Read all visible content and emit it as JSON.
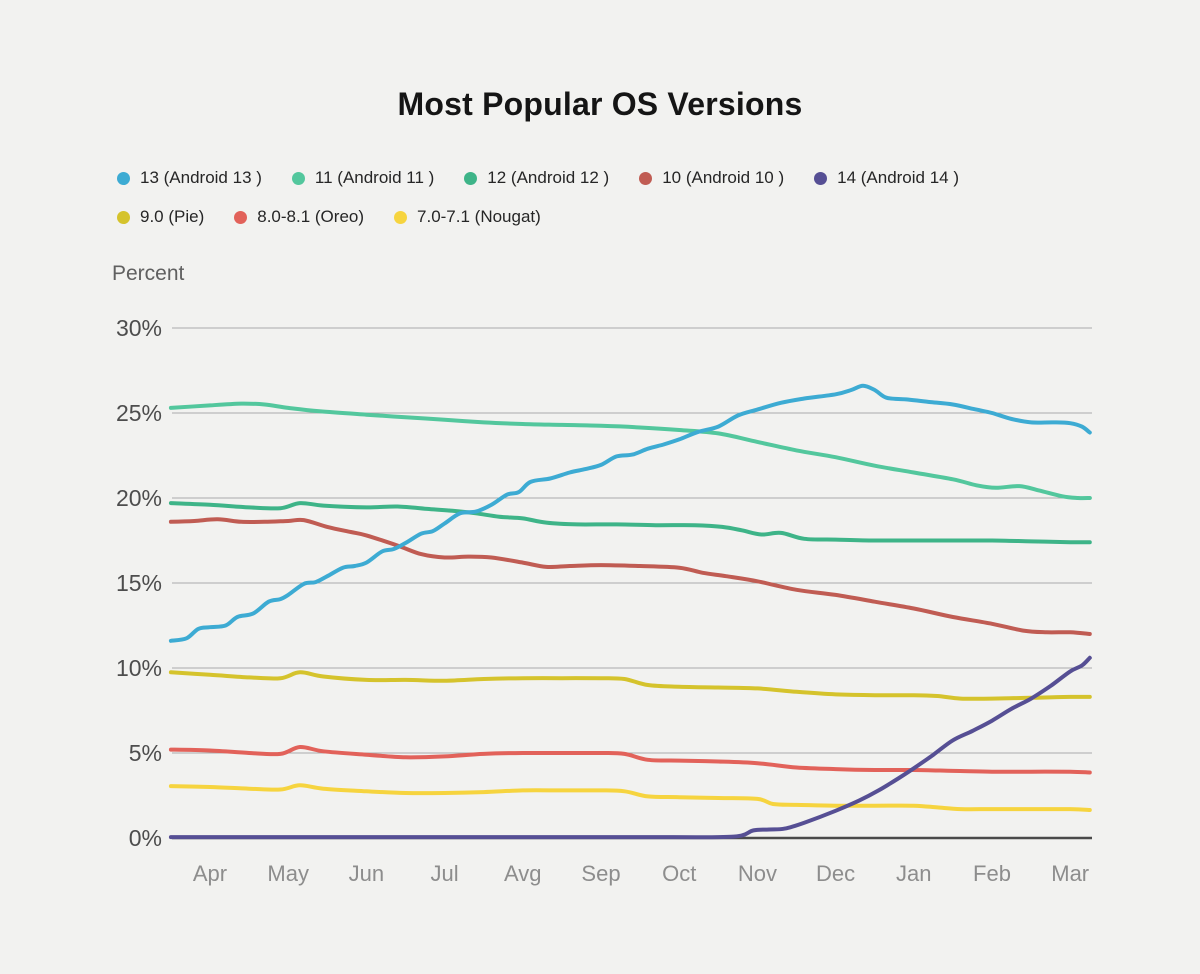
{
  "title": "Most Popular OS Versions",
  "colors": {
    "background": "#f2f2f0",
    "gridline": "#ababab",
    "axis_line": "#4a4a4a",
    "title_text": "#151515",
    "legend_text": "#262626",
    "y_tick_text": "#4d4d4d",
    "x_tick_text": "#8d8d8d",
    "axis_title_text": "#606060"
  },
  "axis": {
    "y_label": "Percent",
    "y_ticks": [
      "30%",
      "25%",
      "20%",
      "15%",
      "10%",
      "5%",
      "0%"
    ],
    "x_ticks": [
      "Apr",
      "May",
      "Jun",
      "Jul",
      "Avg",
      "Sep",
      "Oct",
      "Nov",
      "Dec",
      "Jan",
      "Feb",
      "Mar"
    ]
  },
  "legend": {
    "rows": [
      [
        0,
        1,
        2,
        3,
        4
      ],
      [
        5,
        6,
        7
      ]
    ]
  },
  "chart_data": {
    "type": "line",
    "title": "Most Popular OS Versions",
    "xlabel": "",
    "ylabel": "Percent",
    "ylim": [
      0,
      30
    ],
    "y_tick_step": 5,
    "grid": true,
    "legend_position": "top",
    "x_categories": [
      "Apr",
      "May",
      "Jun",
      "Jul",
      "Avg",
      "Sep",
      "Oct",
      "Nov",
      "Dec",
      "Jan",
      "Feb",
      "Mar"
    ],
    "x_unit": "month index (Apr = 0, Mar = 11; data extends from -0.5 to 11.25)",
    "series": [
      {
        "name": "13 (Android 13 )",
        "color": "#3dabd3",
        "z": 7,
        "points": [
          [
            -0.5,
            11.6
          ],
          [
            -0.3,
            11.75
          ],
          [
            -0.15,
            12.3
          ],
          [
            0,
            12.4
          ],
          [
            0.2,
            12.5
          ],
          [
            0.35,
            13.0
          ],
          [
            0.55,
            13.2
          ],
          [
            0.75,
            13.9
          ],
          [
            0.9,
            14.05
          ],
          [
            1,
            14.3
          ],
          [
            1.2,
            14.95
          ],
          [
            1.35,
            15.05
          ],
          [
            1.5,
            15.4
          ],
          [
            1.7,
            15.9
          ],
          [
            1.85,
            16.0
          ],
          [
            2,
            16.2
          ],
          [
            2.2,
            16.85
          ],
          [
            2.35,
            17.0
          ],
          [
            2.5,
            17.35
          ],
          [
            2.7,
            17.9
          ],
          [
            2.85,
            18.05
          ],
          [
            3,
            18.5
          ],
          [
            3.2,
            19.1
          ],
          [
            3.4,
            19.2
          ],
          [
            3.6,
            19.6
          ],
          [
            3.8,
            20.2
          ],
          [
            3.95,
            20.35
          ],
          [
            4.1,
            20.95
          ],
          [
            4.35,
            21.15
          ],
          [
            4.6,
            21.5
          ],
          [
            4.8,
            21.7
          ],
          [
            5,
            21.95
          ],
          [
            5.2,
            22.45
          ],
          [
            5.4,
            22.55
          ],
          [
            5.6,
            22.9
          ],
          [
            5.8,
            23.15
          ],
          [
            6,
            23.45
          ],
          [
            6.25,
            23.9
          ],
          [
            6.5,
            24.2
          ],
          [
            6.75,
            24.85
          ],
          [
            7,
            25.2
          ],
          [
            7.3,
            25.6
          ],
          [
            7.6,
            25.85
          ],
          [
            8,
            26.1
          ],
          [
            8.2,
            26.35
          ],
          [
            8.35,
            26.6
          ],
          [
            8.5,
            26.35
          ],
          [
            8.65,
            25.9
          ],
          [
            8.9,
            25.8
          ],
          [
            9.2,
            25.65
          ],
          [
            9.5,
            25.5
          ],
          [
            9.8,
            25.2
          ],
          [
            10,
            25.0
          ],
          [
            10.25,
            24.65
          ],
          [
            10.5,
            24.45
          ],
          [
            10.8,
            24.45
          ],
          [
            11,
            24.4
          ],
          [
            11.15,
            24.2
          ],
          [
            11.25,
            23.85
          ]
        ]
      },
      {
        "name": "11 (Android 11 )",
        "color": "#53c79d",
        "z": 1,
        "points": [
          [
            -0.5,
            25.3
          ],
          [
            0,
            25.45
          ],
          [
            0.4,
            25.55
          ],
          [
            0.7,
            25.5
          ],
          [
            1,
            25.3
          ],
          [
            1.4,
            25.1
          ],
          [
            2,
            24.9
          ],
          [
            2.5,
            24.75
          ],
          [
            3,
            24.6
          ],
          [
            3.5,
            24.45
          ],
          [
            4,
            24.35
          ],
          [
            4.5,
            24.3
          ],
          [
            5,
            24.25
          ],
          [
            5.5,
            24.15
          ],
          [
            6,
            24.0
          ],
          [
            6.5,
            23.8
          ],
          [
            7,
            23.3
          ],
          [
            7.5,
            22.8
          ],
          [
            8,
            22.4
          ],
          [
            8.5,
            21.9
          ],
          [
            9,
            21.5
          ],
          [
            9.5,
            21.1
          ],
          [
            9.8,
            20.75
          ],
          [
            10.05,
            20.6
          ],
          [
            10.35,
            20.7
          ],
          [
            10.6,
            20.45
          ],
          [
            10.9,
            20.1
          ],
          [
            11.1,
            20.0
          ],
          [
            11.25,
            20.0
          ]
        ]
      },
      {
        "name": "12 (Android 12 )",
        "color": "#3eb488",
        "z": 2,
        "points": [
          [
            -0.5,
            19.7
          ],
          [
            0,
            19.6
          ],
          [
            0.5,
            19.45
          ],
          [
            0.9,
            19.4
          ],
          [
            1.15,
            19.7
          ],
          [
            1.45,
            19.55
          ],
          [
            2,
            19.45
          ],
          [
            2.4,
            19.5
          ],
          [
            2.8,
            19.35
          ],
          [
            3.1,
            19.25
          ],
          [
            3.4,
            19.1
          ],
          [
            3.7,
            18.9
          ],
          [
            4,
            18.8
          ],
          [
            4.3,
            18.55
          ],
          [
            4.7,
            18.45
          ],
          [
            5.2,
            18.45
          ],
          [
            5.7,
            18.4
          ],
          [
            6.2,
            18.4
          ],
          [
            6.55,
            18.3
          ],
          [
            6.8,
            18.1
          ],
          [
            7.05,
            17.85
          ],
          [
            7.3,
            17.95
          ],
          [
            7.6,
            17.6
          ],
          [
            8,
            17.55
          ],
          [
            8.5,
            17.5
          ],
          [
            9,
            17.5
          ],
          [
            9.5,
            17.5
          ],
          [
            10,
            17.5
          ],
          [
            10.5,
            17.45
          ],
          [
            11,
            17.4
          ],
          [
            11.25,
            17.4
          ]
        ]
      },
      {
        "name": "10 (Android 10 )",
        "color": "#c05c53",
        "z": 3,
        "points": [
          [
            -0.5,
            18.6
          ],
          [
            -0.2,
            18.65
          ],
          [
            0.1,
            18.75
          ],
          [
            0.4,
            18.6
          ],
          [
            0.7,
            18.6
          ],
          [
            1,
            18.65
          ],
          [
            1.2,
            18.7
          ],
          [
            1.5,
            18.3
          ],
          [
            1.8,
            18.0
          ],
          [
            2,
            17.8
          ],
          [
            2.4,
            17.2
          ],
          [
            2.7,
            16.7
          ],
          [
            3,
            16.5
          ],
          [
            3.3,
            16.55
          ],
          [
            3.6,
            16.5
          ],
          [
            4,
            16.2
          ],
          [
            4.3,
            15.95
          ],
          [
            4.6,
            16.0
          ],
          [
            5,
            16.05
          ],
          [
            5.5,
            16.0
          ],
          [
            6,
            15.9
          ],
          [
            6.3,
            15.6
          ],
          [
            6.6,
            15.4
          ],
          [
            7,
            15.1
          ],
          [
            7.5,
            14.6
          ],
          [
            8,
            14.3
          ],
          [
            8.5,
            13.9
          ],
          [
            9,
            13.5
          ],
          [
            9.5,
            13.0
          ],
          [
            10,
            12.6
          ],
          [
            10.4,
            12.2
          ],
          [
            10.7,
            12.1
          ],
          [
            11,
            12.1
          ],
          [
            11.25,
            12.0
          ]
        ]
      },
      {
        "name": "14 (Android 14 )",
        "color": "#564f94",
        "z": 8,
        "points": [
          [
            -0.5,
            0.05
          ],
          [
            1,
            0.05
          ],
          [
            2.5,
            0.05
          ],
          [
            4,
            0.05
          ],
          [
            5.5,
            0.05
          ],
          [
            6.5,
            0.05
          ],
          [
            6.8,
            0.15
          ],
          [
            6.95,
            0.45
          ],
          [
            7.15,
            0.5
          ],
          [
            7.35,
            0.55
          ],
          [
            7.6,
            0.9
          ],
          [
            8,
            1.6
          ],
          [
            8.3,
            2.2
          ],
          [
            8.55,
            2.8
          ],
          [
            8.8,
            3.5
          ],
          [
            9,
            4.1
          ],
          [
            9.25,
            4.9
          ],
          [
            9.5,
            5.75
          ],
          [
            9.75,
            6.3
          ],
          [
            10,
            6.9
          ],
          [
            10.25,
            7.6
          ],
          [
            10.5,
            8.2
          ],
          [
            10.75,
            8.95
          ],
          [
            11,
            9.8
          ],
          [
            11.15,
            10.15
          ],
          [
            11.25,
            10.6
          ]
        ]
      },
      {
        "name": "9.0 (Pie)",
        "color": "#d5c32c",
        "z": 4,
        "points": [
          [
            -0.5,
            9.75
          ],
          [
            0,
            9.6
          ],
          [
            0.5,
            9.45
          ],
          [
            0.9,
            9.4
          ],
          [
            1.15,
            9.75
          ],
          [
            1.45,
            9.5
          ],
          [
            2,
            9.3
          ],
          [
            2.5,
            9.3
          ],
          [
            3,
            9.25
          ],
          [
            3.5,
            9.35
          ],
          [
            4,
            9.4
          ],
          [
            4.5,
            9.4
          ],
          [
            5,
            9.4
          ],
          [
            5.3,
            9.35
          ],
          [
            5.6,
            9.0
          ],
          [
            6,
            8.9
          ],
          [
            6.5,
            8.85
          ],
          [
            7,
            8.8
          ],
          [
            7.5,
            8.6
          ],
          [
            8,
            8.45
          ],
          [
            8.5,
            8.4
          ],
          [
            9,
            8.4
          ],
          [
            9.3,
            8.35
          ],
          [
            9.6,
            8.2
          ],
          [
            10,
            8.2
          ],
          [
            10.5,
            8.25
          ],
          [
            11,
            8.3
          ],
          [
            11.25,
            8.3
          ]
        ]
      },
      {
        "name": "8.0-8.1 (Oreo)",
        "color": "#e2625a",
        "z": 5,
        "points": [
          [
            -0.5,
            5.2
          ],
          [
            0,
            5.15
          ],
          [
            0.5,
            5.0
          ],
          [
            0.9,
            4.95
          ],
          [
            1.15,
            5.35
          ],
          [
            1.45,
            5.1
          ],
          [
            2,
            4.9
          ],
          [
            2.5,
            4.75
          ],
          [
            3,
            4.8
          ],
          [
            3.5,
            4.95
          ],
          [
            4,
            5.0
          ],
          [
            4.5,
            5.0
          ],
          [
            5,
            5.0
          ],
          [
            5.3,
            4.95
          ],
          [
            5.6,
            4.6
          ],
          [
            6,
            4.55
          ],
          [
            6.5,
            4.5
          ],
          [
            7,
            4.4
          ],
          [
            7.5,
            4.15
          ],
          [
            8,
            4.05
          ],
          [
            8.5,
            4.0
          ],
          [
            9,
            4.0
          ],
          [
            9.5,
            3.95
          ],
          [
            10,
            3.9
          ],
          [
            10.5,
            3.9
          ],
          [
            11,
            3.9
          ],
          [
            11.25,
            3.85
          ]
        ]
      },
      {
        "name": "7.0-7.1 (Nougat)",
        "color": "#f6d43f",
        "z": 6,
        "points": [
          [
            -0.5,
            3.05
          ],
          [
            0,
            3.0
          ],
          [
            0.5,
            2.9
          ],
          [
            0.9,
            2.85
          ],
          [
            1.15,
            3.1
          ],
          [
            1.45,
            2.9
          ],
          [
            2,
            2.75
          ],
          [
            2.5,
            2.65
          ],
          [
            3,
            2.65
          ],
          [
            3.5,
            2.7
          ],
          [
            4,
            2.8
          ],
          [
            4.5,
            2.8
          ],
          [
            5,
            2.8
          ],
          [
            5.3,
            2.75
          ],
          [
            5.6,
            2.45
          ],
          [
            6,
            2.4
          ],
          [
            6.5,
            2.35
          ],
          [
            7,
            2.3
          ],
          [
            7.2,
            2.0
          ],
          [
            7.5,
            1.95
          ],
          [
            8,
            1.9
          ],
          [
            8.5,
            1.9
          ],
          [
            9,
            1.9
          ],
          [
            9.3,
            1.8
          ],
          [
            9.6,
            1.7
          ],
          [
            10,
            1.7
          ],
          [
            10.5,
            1.7
          ],
          [
            11,
            1.7
          ],
          [
            11.25,
            1.65
          ]
        ]
      }
    ]
  }
}
